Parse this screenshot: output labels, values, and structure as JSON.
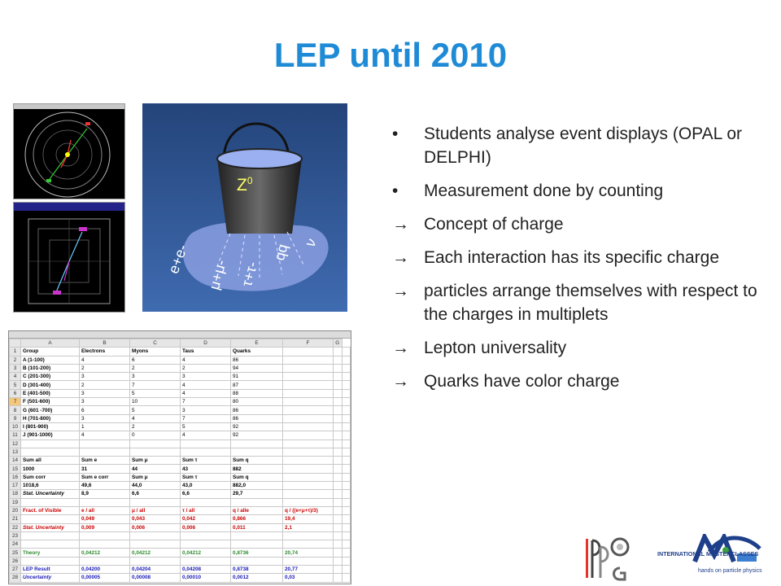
{
  "slide": {
    "title": "LEP until 2010"
  },
  "bucket": {
    "label_main": "Z",
    "label_sup": "0",
    "labels": [
      "e+e-",
      "μ+μ-",
      "τ+τ-",
      "qq",
      "ν"
    ]
  },
  "bullets": [
    {
      "marker": "•",
      "text": "Students analyse event displays (OPAL or DELPHI)"
    },
    {
      "marker": "•",
      "text": "Measurement done by counting"
    },
    {
      "marker": "→",
      "text": "Concept of charge"
    },
    {
      "marker": "→",
      "text": "Each interaction has its specific charge"
    },
    {
      "marker": "→",
      "text": "particles arrange themselves with respect to the charges in multiplets"
    },
    {
      "marker": "→",
      "text": "Lepton universality"
    },
    {
      "marker": "→",
      "text": "Quarks have color charge"
    }
  ],
  "spreadsheet": {
    "columns": [
      "A",
      "B",
      "C",
      "D",
      "E",
      "F",
      "G"
    ],
    "rows": [
      {
        "n": "1",
        "cells": [
          "Group",
          "Electrons",
          "Myons",
          "Taus",
          "Quarks",
          "",
          ""
        ],
        "style": "bold"
      },
      {
        "n": "2",
        "cells": [
          "A (1-100)",
          "4",
          "6",
          "4",
          "86",
          "",
          ""
        ],
        "style": "bold0"
      },
      {
        "n": "3",
        "cells": [
          "B (101-200)",
          "2",
          "2",
          "2",
          "94",
          "",
          ""
        ],
        "style": "bold0"
      },
      {
        "n": "4",
        "cells": [
          "C (201-300)",
          "3",
          "3",
          "3",
          "91",
          "",
          ""
        ],
        "style": "bold0"
      },
      {
        "n": "5",
        "cells": [
          "D (301-400)",
          "2",
          "7",
          "4",
          "87",
          "",
          ""
        ],
        "style": "bold0"
      },
      {
        "n": "6",
        "cells": [
          "E (401-500)",
          "3",
          "5",
          "4",
          "88",
          "",
          ""
        ],
        "style": "bold0"
      },
      {
        "n": "7",
        "cells": [
          "F (501-600)",
          "3",
          "10",
          "7",
          "80",
          "",
          ""
        ],
        "style": "bold0",
        "sel": true
      },
      {
        "n": "8",
        "cells": [
          "G (601 -700)",
          "6",
          "5",
          "3",
          "86",
          "",
          ""
        ],
        "style": "bold0"
      },
      {
        "n": "9",
        "cells": [
          "H (701-800)",
          "3",
          "4",
          "7",
          "86",
          "",
          ""
        ],
        "style": "bold0"
      },
      {
        "n": "10",
        "cells": [
          "I (801-900)",
          "1",
          "2",
          "5",
          "92",
          "",
          ""
        ],
        "style": "bold0"
      },
      {
        "n": "11",
        "cells": [
          "J (901-1000)",
          "4",
          "0",
          "4",
          "92",
          "",
          ""
        ],
        "style": "bold0"
      },
      {
        "n": "12",
        "cells": [
          "",
          "",
          "",
          "",
          "",
          "",
          ""
        ],
        "style": ""
      },
      {
        "n": "13",
        "cells": [
          "",
          "",
          "",
          "",
          "",
          "",
          ""
        ],
        "style": ""
      },
      {
        "n": "14",
        "cells": [
          "Sum all",
          "Sum e",
          "Sum μ",
          "Sum τ",
          "Sum q",
          "",
          ""
        ],
        "style": "bold"
      },
      {
        "n": "15",
        "cells": [
          "1000",
          "31",
          "44",
          "43",
          "882",
          "",
          ""
        ],
        "style": "bold"
      },
      {
        "n": "16",
        "cells": [
          "Sum corr",
          "Sum e corr",
          "Sum μ",
          "Sum τ",
          "Sum q",
          "",
          ""
        ],
        "style": "bold"
      },
      {
        "n": "17",
        "cells": [
          "1018,6",
          "49,6",
          "44,0",
          "43,0",
          "882,0",
          "",
          ""
        ],
        "style": "bold"
      },
      {
        "n": "18",
        "cells": [
          "Stat. Uncertainty",
          "8,9",
          "6,6",
          "6,6",
          "29,7",
          "",
          ""
        ],
        "style": "bold it"
      },
      {
        "n": "19",
        "cells": [
          "",
          "",
          "",
          "",
          "",
          "",
          ""
        ],
        "style": ""
      },
      {
        "n": "20",
        "cells": [
          "Fract. of Visible",
          "e / all",
          "μ / all",
          "τ / all",
          "q / alle",
          "q / ((e+μ+τ)/3)",
          ""
        ],
        "style": "bold red"
      },
      {
        "n": "21",
        "cells": [
          "",
          "0,049",
          "0,043",
          "0,042",
          "0,866",
          "19,4",
          ""
        ],
        "style": "bold red"
      },
      {
        "n": "22",
        "cells": [
          "Stat. Uncertainty",
          "0,009",
          "0,006",
          "0,006",
          "0,011",
          "2,1",
          ""
        ],
        "style": "bold it red"
      },
      {
        "n": "23",
        "cells": [
          "",
          "",
          "",
          "",
          "",
          "",
          ""
        ],
        "style": ""
      },
      {
        "n": "24",
        "cells": [
          "",
          "",
          "",
          "",
          "",
          "",
          ""
        ],
        "style": ""
      },
      {
        "n": "25",
        "cells": [
          "Theory",
          "0,04212",
          "0,04212",
          "0,04212",
          "0,8736",
          "20,74",
          ""
        ],
        "style": "bold green"
      },
      {
        "n": "26",
        "cells": [
          "",
          "",
          "",
          "",
          "",
          "",
          ""
        ],
        "style": ""
      },
      {
        "n": "27",
        "cells": [
          "LEP Result",
          "0,04200",
          "0,04204",
          "0,04208",
          "0,8738",
          "20,77",
          ""
        ],
        "style": "bold blue"
      },
      {
        "n": "28",
        "cells": [
          "Uncertainty",
          "0,00005",
          "0,00008",
          "0,00010",
          "0,0012",
          "0,03",
          ""
        ],
        "style": "bold it blue"
      }
    ]
  },
  "logos": {
    "left_name": "IPPOG",
    "right_name": "INTERNATIONAL MASTERCLASSES",
    "right_tagline": "hands on particle physics"
  },
  "colors": {
    "title": "#1f8bd6",
    "bucket_bg": "#2f5b9c",
    "red": "#cc0000",
    "green": "#2e8b2e",
    "blue": "#1a1ab8"
  }
}
